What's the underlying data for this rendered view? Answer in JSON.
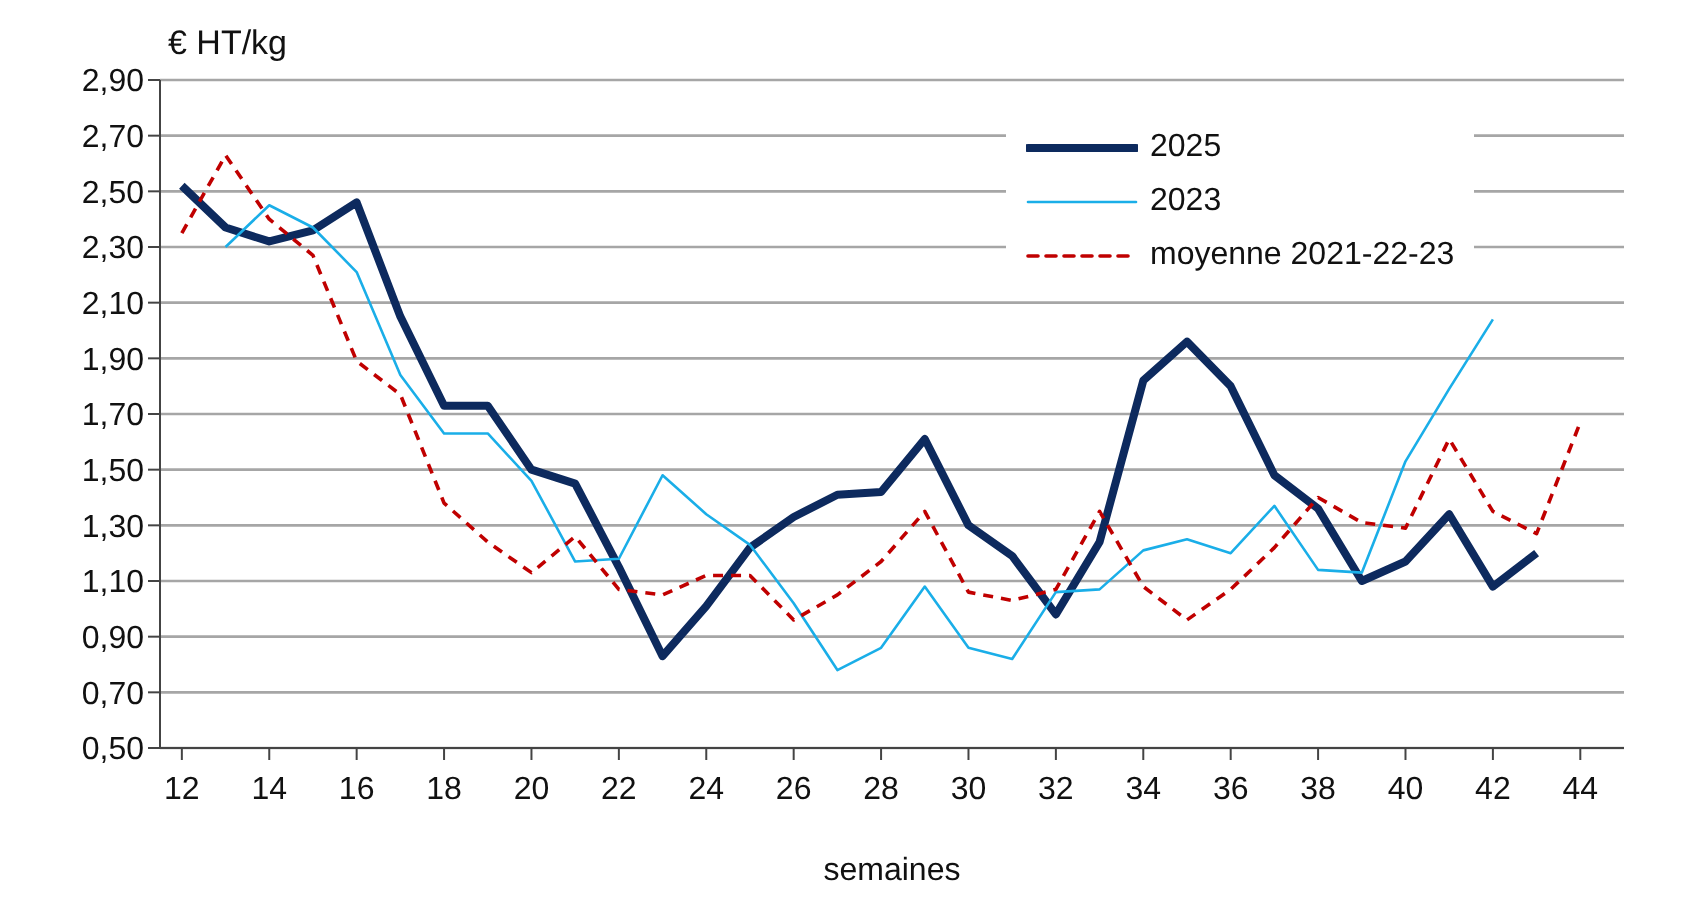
{
  "chart_data": {
    "type": "line",
    "xlabel": "semaines",
    "ylabel": "€ HT/kg",
    "x": [
      12,
      13,
      14,
      15,
      16,
      17,
      18,
      19,
      20,
      21,
      22,
      23,
      24,
      25,
      26,
      27,
      28,
      29,
      30,
      31,
      32,
      33,
      34,
      35,
      36,
      37,
      38,
      39,
      40,
      41,
      42,
      43,
      44
    ],
    "series": [
      {
        "name": "2025",
        "color": "#0d2a5e",
        "values": [
          2.52,
          2.37,
          2.32,
          2.36,
          2.46,
          2.05,
          1.73,
          1.73,
          1.5,
          1.45,
          1.15,
          0.83,
          1.01,
          1.22,
          1.33,
          1.41,
          1.42,
          1.61,
          1.3,
          1.19,
          0.98,
          1.24,
          1.82,
          1.96,
          1.8,
          1.48,
          1.36,
          1.1,
          1.17,
          1.34,
          1.08,
          1.2,
          null
        ]
      },
      {
        "name": "2023",
        "color": "#1aaee8",
        "values": [
          null,
          2.3,
          2.45,
          2.37,
          2.21,
          1.84,
          1.63,
          1.63,
          1.46,
          1.17,
          1.18,
          1.48,
          1.34,
          1.23,
          1.02,
          0.78,
          0.86,
          1.08,
          0.86,
          0.82,
          1.06,
          1.07,
          1.21,
          1.25,
          1.2,
          1.37,
          1.14,
          1.13,
          1.53,
          1.79,
          2.04,
          null,
          null
        ]
      },
      {
        "name": "moyenne 2021-22-23",
        "color": "#c00000",
        "line_style": "dashed",
        "values": [
          2.35,
          2.63,
          2.4,
          2.27,
          1.89,
          1.77,
          1.38,
          1.24,
          1.13,
          1.26,
          1.07,
          1.05,
          1.12,
          1.12,
          0.96,
          1.05,
          1.17,
          1.35,
          1.06,
          1.03,
          1.07,
          1.35,
          1.08,
          0.96,
          1.07,
          1.22,
          1.4,
          1.31,
          1.29,
          1.61,
          1.35,
          1.27,
          1.67
        ]
      }
    ],
    "xlim": [
      11.5,
      45
    ],
    "xticks": [
      12,
      14,
      16,
      18,
      20,
      22,
      24,
      26,
      28,
      30,
      32,
      34,
      36,
      38,
      40,
      42,
      44
    ],
    "ylim": [
      0.5,
      2.9
    ],
    "yticks": [
      {
        "value": 0.5,
        "label": "0,50"
      },
      {
        "value": 0.7,
        "label": "0,70"
      },
      {
        "value": 0.9,
        "label": "0,90"
      },
      {
        "value": 1.1,
        "label": "1,10"
      },
      {
        "value": 1.3,
        "label": "1,30"
      },
      {
        "value": 1.5,
        "label": "1,50"
      },
      {
        "value": 1.7,
        "label": "1,70"
      },
      {
        "value": 1.9,
        "label": "1,90"
      },
      {
        "value": 2.1,
        "label": "2,10"
      },
      {
        "value": 2.3,
        "label": "2,30"
      },
      {
        "value": 2.5,
        "label": "2,50"
      },
      {
        "value": 2.7,
        "label": "2,70"
      },
      {
        "value": 2.9,
        "label": "2,90"
      }
    ],
    "grid": "y",
    "legend": "top right",
    "marker": "none"
  }
}
